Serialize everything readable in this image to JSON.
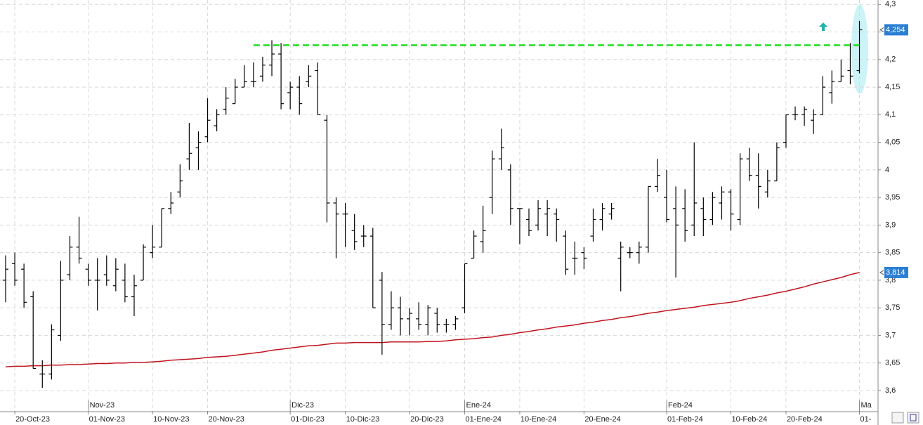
{
  "chart_data": {
    "type": "ohlc",
    "categories": [
      null,
      "20-Oct-23",
      null,
      null,
      null,
      null,
      null,
      null,
      null,
      "01-Nov-23",
      null,
      null,
      null,
      null,
      null,
      null,
      "10-Nov-23",
      null,
      null,
      null,
      null,
      null,
      "20-Nov-23",
      null,
      null,
      null,
      null,
      null,
      null,
      null,
      null,
      "01-Dic-23",
      null,
      null,
      null,
      null,
      null,
      "10-Dic-23",
      null,
      null,
      null,
      null,
      null,
      null,
      "20-Dic-23",
      null,
      null,
      null,
      null,
      null,
      "01-Ene-24",
      null,
      null,
      null,
      null,
      null,
      "10-Ene-24",
      null,
      null,
      null,
      null,
      null,
      null,
      "20-Ene-24",
      null,
      null,
      null,
      null,
      null,
      null,
      null,
      null,
      "01-Feb-24",
      null,
      null,
      null,
      null,
      null,
      null,
      "10-Feb-24",
      null,
      null,
      null,
      null,
      null,
      "20-Feb-24",
      null,
      null,
      null,
      null,
      null,
      null,
      null,
      "01-"
    ],
    "months": [
      null,
      null,
      null,
      null,
      null,
      null,
      null,
      null,
      null,
      "Nov-23",
      null,
      null,
      null,
      null,
      null,
      null,
      null,
      null,
      null,
      null,
      null,
      null,
      null,
      null,
      null,
      null,
      null,
      null,
      null,
      null,
      null,
      "Dic-23",
      null,
      null,
      null,
      null,
      null,
      null,
      null,
      null,
      null,
      null,
      null,
      null,
      null,
      null,
      null,
      null,
      null,
      null,
      "Ene-24",
      null,
      null,
      null,
      null,
      null,
      null,
      null,
      null,
      null,
      null,
      null,
      null,
      null,
      null,
      null,
      null,
      null,
      null,
      null,
      null,
      null,
      "Feb-24",
      null,
      null,
      null,
      null,
      null,
      null,
      null,
      null,
      null,
      null,
      null,
      null,
      null,
      null,
      null,
      null,
      null,
      null,
      null,
      null,
      "Ma"
    ],
    "open": [
      3.8,
      3.83,
      3.82,
      3.77,
      3.63,
      3.63,
      3.7,
      3.81,
      3.86,
      3.82,
      3.8,
      3.81,
      3.79,
      3.8,
      3.77,
      3.8,
      3.85,
      3.86,
      3.93,
      3.96,
      4.02,
      4.04,
      4.06,
      4.08,
      4.11,
      4.12,
      4.15,
      4.16,
      4.17,
      4.19,
      4.21,
      4.14,
      4.15,
      4.16,
      4.18,
      4.09,
      3.94,
      3.92,
      3.89,
      3.88,
      3.88,
      3.8,
      3.72,
      3.75,
      3.73,
      3.73,
      3.72,
      3.74,
      3.72,
      3.72,
      3.75,
      3.84,
      3.87,
      3.95,
      4.02,
      4.0,
      3.93,
      3.91,
      3.9,
      3.92,
      3.92,
      3.88,
      3.84,
      3.85,
      3.88,
      3.91,
      3.92,
      3.84,
      3.85,
      3.85,
      3.86,
      3.97,
      3.95,
      3.93,
      3.93,
      3.9,
      3.93,
      3.91,
      3.94,
      3.96,
      3.91,
      4.02,
      3.99,
      3.96,
      3.98,
      4.05,
      4.1,
      4.1,
      4.09,
      4.1,
      4.14,
      4.16,
      4.18,
      4.18
    ],
    "high": [
      3.845,
      3.85,
      3.83,
      3.78,
      3.655,
      3.72,
      3.835,
      3.88,
      3.915,
      3.83,
      3.84,
      3.845,
      3.84,
      3.83,
      3.81,
      3.865,
      3.9,
      3.93,
      3.96,
      4.01,
      4.085,
      4.07,
      4.13,
      4.11,
      4.15,
      4.165,
      4.19,
      4.195,
      4.205,
      4.235,
      4.23,
      4.16,
      4.17,
      4.19,
      4.195,
      4.1,
      3.95,
      3.94,
      3.92,
      3.9,
      3.895,
      3.815,
      3.78,
      3.77,
      3.75,
      3.76,
      3.755,
      3.75,
      3.73,
      3.735,
      3.83,
      3.89,
      3.935,
      4.035,
      4.075,
      4.01,
      3.93,
      3.93,
      3.945,
      3.945,
      3.93,
      3.89,
      3.87,
      3.86,
      3.93,
      3.94,
      3.94,
      3.87,
      3.86,
      3.87,
      3.97,
      4.02,
      4.0,
      3.97,
      3.965,
      4.05,
      3.95,
      3.96,
      3.97,
      3.965,
      4.03,
      4.04,
      4.03,
      4.0,
      4.05,
      4.1,
      4.115,
      4.115,
      4.11,
      4.17,
      4.18,
      4.2,
      4.23,
      4.27
    ],
    "low": [
      3.76,
      3.79,
      3.75,
      3.64,
      3.605,
      3.62,
      3.69,
      3.8,
      3.83,
      3.79,
      3.745,
      3.79,
      3.78,
      3.76,
      3.735,
      3.8,
      3.84,
      3.86,
      3.92,
      3.95,
      4.0,
      4.0,
      4.05,
      4.07,
      4.1,
      4.12,
      4.15,
      4.15,
      4.16,
      4.17,
      4.11,
      4.11,
      4.1,
      4.15,
      4.1,
      3.905,
      3.84,
      3.86,
      3.855,
      3.86,
      3.75,
      3.665,
      3.71,
      3.7,
      3.7,
      3.71,
      3.7,
      3.705,
      3.705,
      3.71,
      3.74,
      3.84,
      3.85,
      3.92,
      4.0,
      3.9,
      3.865,
      3.88,
      3.89,
      3.88,
      3.87,
      3.81,
      3.81,
      3.82,
      3.87,
      3.89,
      3.91,
      3.78,
      3.84,
      3.83,
      3.85,
      3.96,
      3.905,
      3.805,
      3.87,
      3.88,
      3.88,
      3.9,
      3.91,
      3.89,
      3.9,
      3.98,
      3.93,
      3.95,
      3.98,
      4.04,
      4.09,
      4.08,
      4.065,
      4.1,
      4.12,
      4.16,
      4.155,
      4.175
    ],
    "close": [
      3.82,
      3.8,
      3.76,
      3.64,
      3.63,
      3.71,
      3.8,
      3.86,
      3.84,
      3.8,
      3.8,
      3.8,
      3.82,
      3.77,
      3.79,
      3.86,
      3.86,
      3.93,
      3.94,
      3.98,
      4.03,
      4.05,
      4.09,
      4.1,
      4.13,
      4.15,
      4.16,
      4.16,
      4.19,
      4.21,
      4.12,
      4.15,
      4.12,
      4.17,
      4.1,
      3.94,
      3.92,
      3.92,
      3.87,
      3.88,
      3.75,
      3.72,
      3.75,
      3.73,
      3.74,
      3.72,
      3.75,
      3.72,
      3.72,
      3.73,
      3.83,
      3.88,
      3.89,
      4.02,
      4.04,
      3.93,
      3.93,
      3.89,
      3.93,
      3.93,
      3.91,
      3.82,
      3.84,
      3.84,
      3.91,
      3.93,
      3.93,
      3.86,
      3.85,
      3.86,
      3.97,
      3.99,
      3.91,
      3.9,
      3.89,
      3.94,
      3.91,
      3.95,
      3.96,
      3.92,
      4.02,
      3.99,
      3.97,
      3.98,
      4.04,
      4.1,
      4.1,
      4.11,
      4.1,
      4.15,
      4.16,
      4.17,
      4.17,
      4.254
    ],
    "close_label": "4,254",
    "color": "#000000",
    "moving_average": {
      "color": "#c0141e",
      "last_label": "3,814",
      "values": [
        3.643,
        3.644,
        3.644,
        3.645,
        3.645,
        3.646,
        3.646,
        3.647,
        3.647,
        3.648,
        3.649,
        3.649,
        3.65,
        3.65,
        3.651,
        3.651,
        3.652,
        3.653,
        3.655,
        3.656,
        3.657,
        3.658,
        3.66,
        3.661,
        3.662,
        3.664,
        3.666,
        3.668,
        3.67,
        3.673,
        3.675,
        3.677,
        3.679,
        3.681,
        3.682,
        3.684,
        3.686,
        3.686,
        3.687,
        3.687,
        3.687,
        3.687,
        3.688,
        3.688,
        3.688,
        3.688,
        3.689,
        3.689,
        3.69,
        3.692,
        3.693,
        3.694,
        3.696,
        3.697,
        3.7,
        3.702,
        3.705,
        3.707,
        3.71,
        3.712,
        3.715,
        3.717,
        3.719,
        3.722,
        3.724,
        3.727,
        3.729,
        3.732,
        3.734,
        3.737,
        3.74,
        3.742,
        3.745,
        3.747,
        3.749,
        3.751,
        3.754,
        3.756,
        3.758,
        3.76,
        3.763,
        3.767,
        3.77,
        3.773,
        3.777,
        3.78,
        3.784,
        3.788,
        3.793,
        3.797,
        3.801,
        3.805,
        3.81,
        3.814
      ]
    },
    "resistance": {
      "color": "#22dd22",
      "values": [
        null,
        null,
        null,
        null,
        null,
        null,
        null,
        null,
        null,
        null,
        null,
        null,
        null,
        null,
        null,
        null,
        null,
        null,
        null,
        null,
        null,
        null,
        null,
        null,
        null,
        null,
        null,
        4.226,
        4.226,
        4.226,
        4.226,
        4.226,
        4.226,
        4.226,
        4.226,
        4.226,
        4.226,
        4.226,
        4.226,
        4.226,
        4.226,
        4.226,
        4.226,
        4.226,
        4.226,
        4.226,
        4.226,
        4.226,
        4.226,
        4.226,
        4.226,
        4.226,
        4.226,
        4.226,
        4.226,
        4.226,
        4.226,
        4.226,
        4.226,
        4.226,
        4.226,
        4.226,
        4.226,
        4.226,
        4.226,
        4.226,
        4.226,
        4.226,
        4.226,
        4.226,
        4.226,
        4.226,
        4.226,
        4.226,
        4.226,
        4.226,
        4.226,
        4.226,
        4.226,
        4.226,
        4.226,
        4.226,
        4.226,
        4.226,
        4.226,
        4.226,
        4.226,
        4.226,
        4.226,
        4.226,
        4.226,
        4.226,
        4.226,
        4.226
      ]
    },
    "ylim": [
      3.563,
      4.308
    ],
    "yticks": [
      {
        "value": 3.6,
        "label": "3,6"
      },
      {
        "value": 3.65,
        "label": "3,65"
      },
      {
        "value": 3.7,
        "label": "3,7"
      },
      {
        "value": 3.75,
        "label": "3,75"
      },
      {
        "value": 3.8,
        "label": "3,8"
      },
      {
        "value": 3.85,
        "label": "3,85"
      },
      {
        "value": 3.9,
        "label": "3,9"
      },
      {
        "value": 3.95,
        "label": "3,95"
      },
      4,
      {
        "value": 4.05,
        "label": "4,05"
      },
      {
        "value": 4.1,
        "label": "4,1"
      },
      {
        "value": 4.15,
        "label": "4,15"
      },
      {
        "value": 4.2,
        "label": "4,2"
      },
      {
        "value": 4.25,
        "label": "4,25"
      },
      {
        "value": 4.3,
        "label": "4,3"
      }
    ],
    "grid": true
  }
}
